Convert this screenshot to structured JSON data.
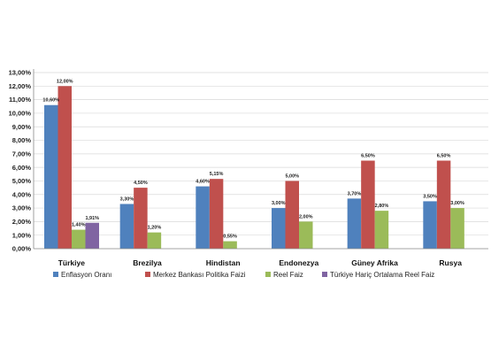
{
  "chart_data": {
    "type": "bar",
    "categories": [
      "Türkiye",
      "Brezilya",
      "Hindistan",
      "Endonezya",
      "Güney Afrika",
      "Rusya"
    ],
    "series": [
      {
        "name": "Enflasyon Oranı",
        "color": "#4f81bd",
        "values": [
          10.6,
          3.3,
          4.6,
          3.0,
          3.7,
          3.5
        ],
        "labels": [
          "10,60%",
          "3,30%",
          "4,60%",
          "3,00%",
          "3,70%",
          "3,50%"
        ]
      },
      {
        "name": "Merkez Bankası Politika Faizi",
        "color": "#c0504d",
        "values": [
          12.0,
          4.5,
          5.15,
          5.0,
          6.5,
          6.5
        ],
        "labels": [
          "12,00%",
          "4,50%",
          "5,15%",
          "5,00%",
          "6,50%",
          "6,50%"
        ]
      },
      {
        "name": "Reel Faiz",
        "color": "#9bbb59",
        "values": [
          1.4,
          1.2,
          0.55,
          2.0,
          2.8,
          3.0
        ],
        "labels": [
          "1,40%",
          "1,20%",
          "0,55%",
          "2,00%",
          "2,80%",
          "3,00%"
        ]
      },
      {
        "name": "Türkiye Hariç Ortalama Reel Faiz",
        "color": "#8064a2",
        "values": [
          1.91,
          null,
          null,
          null,
          null,
          null
        ],
        "labels": [
          "1,91%",
          null,
          null,
          null,
          null,
          null
        ]
      }
    ],
    "yticks": [
      "0,00%",
      "1,00%",
      "2,00%",
      "3,00%",
      "4,00%",
      "5,00%",
      "6,00%",
      "7,00%",
      "8,00%",
      "9,00%",
      "10,00%",
      "11,00%",
      "12,00%",
      "13,00%"
    ],
    "ylim": [
      0,
      13
    ],
    "grid": true,
    "legend": "bottom"
  }
}
